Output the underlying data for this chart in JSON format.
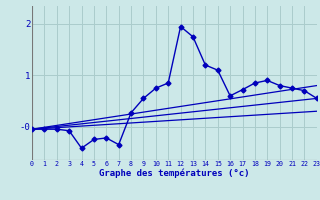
{
  "xlabel": "Graphe des températures (°c)",
  "background_color": "#cce8e8",
  "grid_color": "#aacccc",
  "line_color": "#0000bb",
  "xlim": [
    0,
    23
  ],
  "ylim": [
    -0.65,
    2.35
  ],
  "ytick_positions": [
    0,
    1,
    2
  ],
  "ytick_labels": [
    "-0",
    "1",
    "2"
  ],
  "xticks": [
    0,
    1,
    2,
    3,
    4,
    5,
    6,
    7,
    8,
    9,
    10,
    11,
    12,
    13,
    14,
    15,
    16,
    17,
    18,
    19,
    20,
    21,
    22,
    23
  ],
  "curve1_x": [
    0,
    1,
    2,
    3,
    4,
    5,
    6,
    7,
    8,
    9,
    10,
    11,
    12,
    13,
    14,
    15,
    16,
    17,
    18,
    19,
    20,
    21,
    22,
    23
  ],
  "curve1_y": [
    -0.05,
    -0.05,
    -0.05,
    -0.08,
    -0.42,
    -0.25,
    -0.22,
    -0.35,
    0.27,
    0.55,
    0.75,
    0.85,
    1.95,
    1.75,
    1.2,
    1.1,
    0.6,
    0.72,
    0.85,
    0.9,
    0.8,
    0.75,
    0.7,
    0.55
  ],
  "line1_x": [
    0,
    23
  ],
  "line1_y": [
    -0.05,
    0.8
  ],
  "line2_x": [
    0,
    23
  ],
  "line2_y": [
    -0.05,
    0.55
  ],
  "line3_x": [
    0,
    23
  ],
  "line3_y": [
    -0.05,
    0.3
  ]
}
